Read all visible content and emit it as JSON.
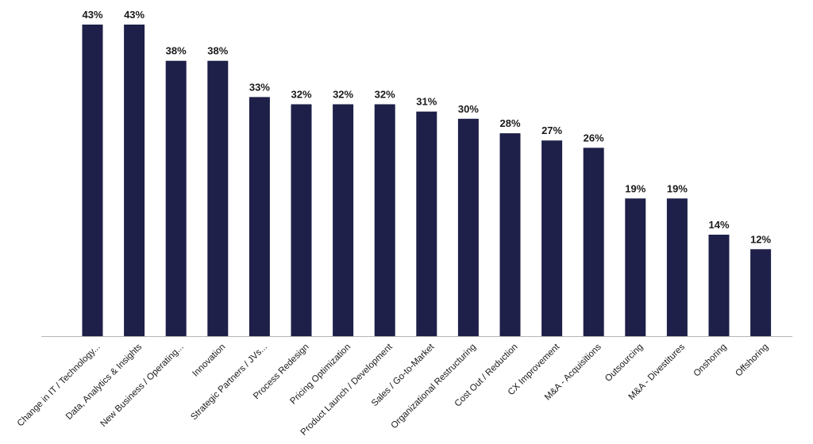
{
  "chart_data": {
    "type": "bar",
    "title": "",
    "xlabel": "",
    "ylabel": "",
    "ylim": [
      0,
      43
    ],
    "grid": false,
    "legend": "none",
    "bar_color": "#1e2049",
    "categories": [
      "Change in IT / Technology...",
      "Data, Analytics & Insights",
      "New Business / Operating...",
      "Innovation",
      "Strategic Partners / JVs...",
      "Process Redesign",
      "Pricing Optimization",
      "Product Launch / Development",
      "Sales / Go-to-Market",
      "Organizational Restructuring",
      "Cost Out / Reduction",
      "CX Improvement",
      "M&A - Acquisitions",
      "Outsourcing",
      "M&A - Divestitures",
      "Onshoring",
      "Offshoring"
    ],
    "values": [
      43,
      43,
      38,
      38,
      33,
      32,
      32,
      32,
      31,
      30,
      28,
      27,
      26,
      19,
      19,
      14,
      12
    ],
    "value_labels": [
      "43%",
      "43%",
      "38%",
      "38%",
      "33%",
      "32%",
      "32%",
      "32%",
      "31%",
      "30%",
      "28%",
      "27%",
      "26%",
      "19%",
      "19%",
      "14%",
      "12%"
    ]
  }
}
